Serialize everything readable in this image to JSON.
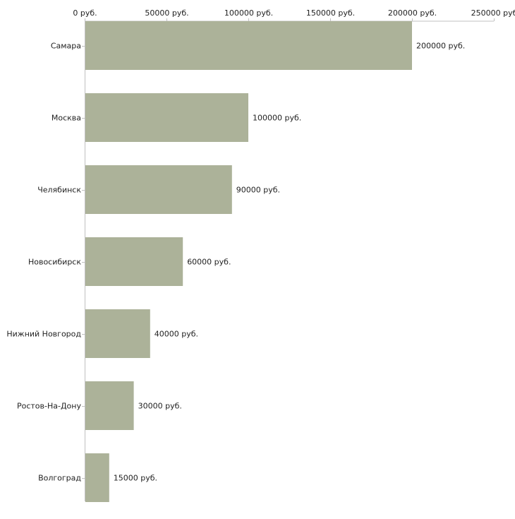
{
  "chart_data": {
    "type": "bar",
    "orientation": "horizontal",
    "categories": [
      "Самара",
      "Москва",
      "Челябинск",
      "Новосибирск",
      "Нижний Новгород",
      "Ростов-На-Дону",
      "Волгоград"
    ],
    "values": [
      200000,
      100000,
      90000,
      60000,
      40000,
      30000,
      15000
    ],
    "value_labels": [
      "200000 руб.",
      "100000 руб.",
      "90000 руб.",
      "60000 руб.",
      "40000 руб.",
      "30000 руб.",
      "15000 руб."
    ],
    "x_ticks": [
      0,
      50000,
      100000,
      150000,
      200000,
      250000
    ],
    "x_tick_labels": [
      "0 руб.",
      "50000 руб.",
      "100000 руб.",
      "150000 руб.",
      "200000 руб.",
      "250000 руб"
    ],
    "xlim": [
      0,
      250000
    ],
    "title": "",
    "xlabel": "",
    "ylabel": "",
    "grid": false,
    "legend": "none",
    "colors": {
      "bar": "#acb299",
      "axis": "#c0c0c0",
      "text": "#222222"
    }
  }
}
